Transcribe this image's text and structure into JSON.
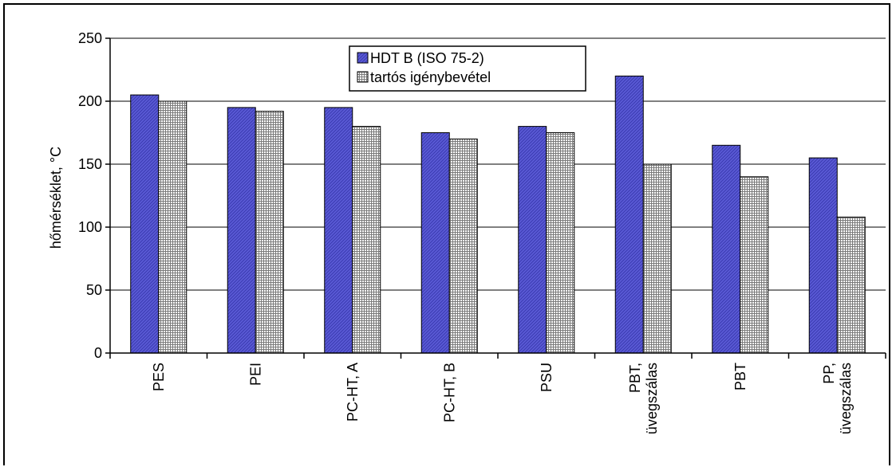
{
  "chart_data": {
    "type": "bar",
    "categories": [
      [
        "PES"
      ],
      [
        "PEI"
      ],
      [
        "PC-HT, A"
      ],
      [
        "PC-HT, B"
      ],
      [
        "PSU"
      ],
      [
        "PBT,",
        "üvegszálas"
      ],
      [
        "PBT"
      ],
      [
        "PP,",
        "üvegszálas"
      ]
    ],
    "series": [
      {
        "name": "HDT B (ISO 75-2)",
        "values": [
          205,
          195,
          195,
          175,
          180,
          220,
          165,
          155
        ],
        "color": "#5a5ad2",
        "pattern": "diagonal-hatch"
      },
      {
        "name": "tartós igénybevétel",
        "values": [
          200,
          192,
          180,
          170,
          175,
          150,
          140,
          108
        ],
        "color": "#d0d0d0",
        "pattern": "fine-grid"
      }
    ],
    "xlabel": "",
    "ylabel": "hőmérséklet, °C",
    "ylim": [
      0,
      250
    ],
    "yticks": [
      0,
      50,
      100,
      150,
      200,
      250
    ],
    "grid": true,
    "legend_position": "top-center"
  }
}
